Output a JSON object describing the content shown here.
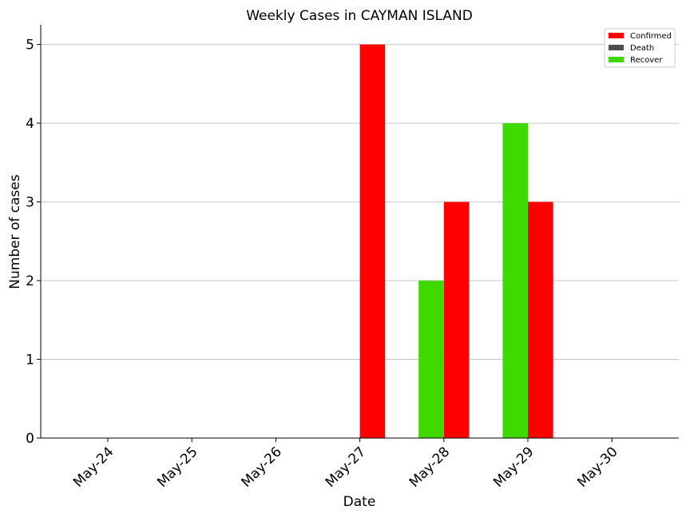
{
  "chart_data": {
    "type": "bar",
    "title": "Weekly Cases in CAYMAN ISLAND",
    "xlabel": "Date",
    "ylabel": "Number of cases",
    "categories": [
      "May-24",
      "May-25",
      "May-26",
      "May-27",
      "May-28",
      "May-29",
      "May-30"
    ],
    "series": [
      {
        "name": "Confirmed",
        "color": "#ff0000",
        "values": [
          0,
          0,
          0,
          5,
          3,
          3,
          0
        ]
      },
      {
        "name": "Death",
        "color": "#4d4d4d",
        "values": [
          0,
          0,
          0,
          0,
          0,
          0,
          0
        ]
      },
      {
        "name": "Recover",
        "color": "#3fd900",
        "values": [
          0,
          0,
          0,
          0,
          2,
          4,
          0
        ]
      }
    ],
    "ylim": [
      0,
      5.25
    ],
    "yticks": [
      "0",
      "1",
      "2",
      "3",
      "4",
      "5"
    ],
    "grid": "horizontal",
    "legend_position": "top-right"
  }
}
